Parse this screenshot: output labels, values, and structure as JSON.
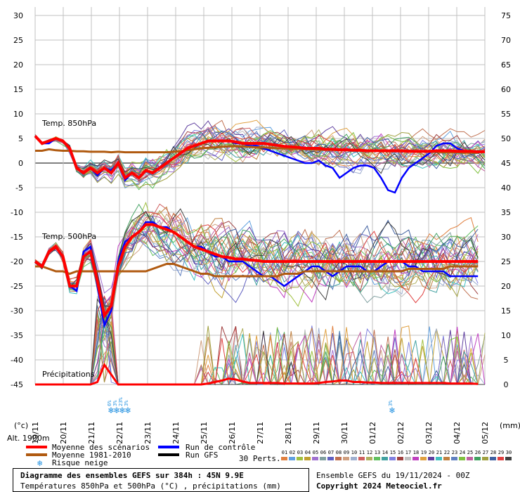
{
  "chart_data": {
    "type": "line",
    "left_axis": {
      "unit_label": "(°c)",
      "ticks": [
        30,
        25,
        20,
        15,
        10,
        5,
        0,
        -5,
        -10,
        -15,
        -20,
        -25,
        -30,
        -35,
        -40,
        -45
      ],
      "range": [
        -45,
        30
      ]
    },
    "right_axis": {
      "unit_label": "(mm)",
      "ticks": [
        75,
        70,
        65,
        60,
        55,
        50,
        45,
        40,
        35,
        30,
        25,
        20,
        15,
        10,
        5,
        0
      ],
      "range": [
        0,
        75
      ]
    },
    "x_labels": [
      "19/11",
      "20/11",
      "21/11",
      "22/11",
      "23/11",
      "24/11",
      "25/11",
      "26/11",
      "27/11",
      "28/11",
      "29/11",
      "30/11",
      "01/12",
      "02/12",
      "03/12",
      "04/12",
      "05/12"
    ],
    "altitude_label": "Alt. 1900m",
    "panels": [
      {
        "label": "Temp. 850hPa"
      },
      {
        "label": "Temp. 500hPa"
      },
      {
        "label": "Précipitations"
      }
    ],
    "series_850": {
      "mean": [
        5.5,
        4,
        4.5,
        5,
        4.5,
        3,
        -1,
        -2,
        -1,
        -2,
        -1,
        -2,
        0,
        -3,
        -2,
        -3,
        -1.5,
        -2,
        -1,
        0,
        1,
        2,
        3,
        3.5,
        4,
        4.5,
        4.5,
        4.5,
        4.5,
        4.3,
        4,
        4,
        4,
        4,
        3.8,
        3.6,
        3.4,
        3.3,
        3.2,
        3,
        3,
        3,
        2.8,
        2.8,
        2.7,
        2.7,
        2.6,
        2.6,
        2.5,
        2.5,
        2.5,
        2.5,
        2.5,
        2.5,
        2.4,
        2.4,
        2.4,
        2.4,
        2.5,
        2.5,
        2.5,
        2.4,
        2.4,
        2.4,
        2.3,
        2.3
      ],
      "climate": [
        2.5,
        2.5,
        2.8,
        2.6,
        2.5,
        2.5,
        2.4,
        2.4,
        2.3,
        2.3,
        2.3,
        2.2,
        2.3,
        2.2,
        2.2,
        2.2,
        2.2,
        2.2,
        2.2,
        2.2,
        2.3,
        2.4,
        2.6,
        2.8,
        3.0,
        3.1,
        3.2,
        3.3,
        3.4,
        3.4,
        3.4,
        3.3,
        3.2,
        3.2,
        3.1,
        3.0,
        3.0,
        2.9,
        2.9,
        2.8,
        2.8,
        2.7,
        2.7,
        2.7,
        2.6,
        2.6,
        2.6,
        2.5,
        2.5,
        2.5,
        2.4,
        2.4,
        2.4,
        2.4,
        2.3,
        2.3,
        2.3,
        2.3,
        2.3,
        2.2,
        2.2,
        2.2,
        2.1,
        2.1,
        2.1
      ],
      "control": [
        5.5,
        4,
        4,
        5,
        4.5,
        3,
        -1,
        -2,
        -1,
        -2.5,
        -1,
        -1.5,
        0,
        -3.5,
        -2,
        -3,
        -1.5,
        -2,
        -1,
        0,
        1,
        2,
        3,
        3.5,
        4,
        4.5,
        4.5,
        4.5,
        4.5,
        4,
        4,
        3.5,
        3.5,
        3,
        2.5,
        2,
        1.5,
        1,
        0.5,
        0,
        0,
        0.5,
        -0.5,
        -1,
        -3,
        -2,
        -1,
        -0.5,
        -0.5,
        -1,
        -3,
        -5.5,
        -6,
        -3,
        -1,
        0,
        1,
        2,
        3.5,
        4,
        4,
        3,
        2.5,
        2
      ]
    },
    "series_500": {
      "mean": [
        -20,
        -21,
        -18,
        -17,
        -19,
        -25,
        -25,
        -19,
        -18,
        -24,
        -31,
        -29,
        -21,
        -17,
        -15,
        -14,
        -12.5,
        -12.5,
        -13,
        -13.5,
        -14,
        -15,
        -16,
        -17,
        -17.5,
        -18,
        -18.5,
        -19,
        -19.2,
        -19.5,
        -19.5,
        -19.7,
        -19.8,
        -20,
        -20,
        -20,
        -20,
        -20,
        -20,
        -20,
        -20,
        -20,
        -20,
        -20,
        -20,
        -20,
        -20,
        -20,
        -20,
        -20,
        -20,
        -20,
        -20,
        -20,
        -20,
        -20,
        -20,
        -20,
        -20,
        -20,
        -20,
        -20,
        -20,
        -20,
        -20
      ],
      "climate": [
        -21,
        -21,
        -21.5,
        -22,
        -22,
        -22.5,
        -22,
        -22,
        -22,
        -22,
        -22,
        -22,
        -22,
        -22,
        -22,
        -22,
        -22,
        -21.5,
        -21,
        -20.5,
        -20.5,
        -21,
        -21.5,
        -22,
        -22.5,
        -22.5,
        -23,
        -23,
        -23,
        -23,
        -23,
        -23,
        -23,
        -23,
        -23,
        -23,
        -22.5,
        -22.5,
        -22.5,
        -22,
        -22,
        -22,
        -22,
        -22,
        -22,
        -22,
        -22,
        -22,
        -22,
        -22,
        -22,
        -22,
        -22,
        -22,
        -21.5,
        -21.5,
        -21.5,
        -21.5,
        -21.5,
        -21.5,
        -21,
        -21,
        -21,
        -21,
        -21
      ],
      "control": [
        -20,
        -21,
        -18,
        -17,
        -19,
        -25,
        -26,
        -18,
        -17,
        -25,
        -33,
        -30,
        -20,
        -16,
        -15,
        -14,
        -12,
        -12,
        -13,
        -13,
        -14,
        -15,
        -16,
        -17,
        -17,
        -18,
        -19,
        -19,
        -20,
        -20,
        -20,
        -21,
        -22,
        -23,
        -23,
        -24,
        -25,
        -24,
        -23,
        -22,
        -21,
        -21,
        -22,
        -23,
        -22,
        -21,
        -21,
        -21,
        -22,
        -22,
        -21,
        -20,
        -20,
        -20,
        -21,
        -21,
        -22,
        -22,
        -22,
        -22,
        -23,
        -23,
        -23,
        -23,
        -23
      ]
    },
    "series_precip": {
      "mean_mm": [
        0,
        0,
        0,
        0,
        0,
        0,
        0,
        0,
        0,
        0.5,
        4,
        2,
        0,
        0,
        0,
        0,
        0,
        0,
        0,
        0,
        0,
        0,
        0,
        0,
        0,
        0.2,
        0.5,
        0.8,
        1.2,
        1,
        0.6,
        0.3,
        0.3,
        0.3,
        0.3,
        0.3,
        0.2,
        0.2,
        0.2,
        0.2,
        0.2,
        0.3,
        0.5,
        0.6,
        0.8,
        0.8,
        0.5,
        0.5,
        0.4,
        0.4,
        0.3,
        0.3,
        0.3,
        0.3,
        0.3,
        0.3,
        0.3,
        0.3,
        0.3,
        0.3,
        0.2,
        0.2,
        0.2,
        0.2,
        0.1
      ],
      "gfs_mm": [
        0,
        0,
        0,
        0,
        0,
        0,
        0,
        0,
        0,
        0,
        0,
        0,
        0,
        0,
        0,
        0,
        0,
        0,
        0,
        0,
        0,
        0,
        0,
        0,
        0,
        0,
        0,
        0,
        0,
        0,
        0,
        0,
        0,
        0,
        0,
        0,
        0,
        0,
        0,
        0,
        0,
        0,
        0,
        0,
        0,
        0,
        0,
        0,
        0,
        0,
        0,
        0,
        0,
        0,
        0,
        0,
        0,
        0,
        0,
        0,
        0,
        0,
        0,
        0,
        0,
        0,
        0,
        0,
        0,
        0,
        0,
        0,
        0,
        0,
        0,
        0,
        0,
        0,
        0,
        0,
        0,
        0,
        0,
        0,
        0,
        0,
        0,
        0,
        0,
        0
      ]
    },
    "snow_risk": [
      {
        "day": "22/11",
        "labels": [
          "6%",
          "3%",
          "23%",
          "3%"
        ]
      },
      {
        "day": "02/12",
        "labels": [
          "3%"
        ]
      }
    ],
    "colors": {
      "mean": "#ff0000",
      "climate": "#b05a10",
      "control": "#0000ff",
      "gfs": "#000000",
      "grid": "#c0c0c0",
      "zero_line": "#808080",
      "snow": "#2090e0"
    }
  },
  "legend": {
    "items": [
      {
        "label": "Moyenne des scénarios",
        "color": "#ff0000"
      },
      {
        "label": "Moyenne 1981-2010",
        "color": "#b05a10"
      },
      {
        "label": "Risque neige",
        "icon": "snowflake-icon"
      },
      {
        "label": "Run de contrôle",
        "color": "#0000ff"
      },
      {
        "label": "Run GFS",
        "color": "#000000"
      }
    ],
    "perts_label": "30 Perts.",
    "perts": [
      "01",
      "02",
      "03",
      "04",
      "05",
      "06",
      "07",
      "08",
      "09",
      "10",
      "11",
      "12",
      "13",
      "14",
      "15",
      "16",
      "17",
      "18",
      "19",
      "20",
      "21",
      "22",
      "23",
      "24",
      "25",
      "26",
      "27",
      "28",
      "29",
      "30"
    ],
    "pert_colors": [
      "#e08040",
      "#60a0e0",
      "#a0c040",
      "#c0a030",
      "#a070d0",
      "#80a0a0",
      "#6060c0",
      "#c07050",
      "#d0a080",
      "#a0b0d0",
      "#d06060",
      "#b0b060",
      "#60c060",
      "#40a0a0",
      "#8080e0",
      "#a04040",
      "#c0c0c0",
      "#c040c0",
      "#e0a040",
      "#6040a0",
      "#40c0c0",
      "#c08040",
      "#6080c0",
      "#80c040",
      "#c060a0",
      "#40a060",
      "#a0a040",
      "#4060a0",
      "#e04040",
      "#404040"
    ]
  },
  "footer": {
    "title": "Diagramme des ensembles GEFS sur 384h : 45N 9.9E",
    "subtitle": "Températures 850hPa et 500hPa (°C) , précipitations (mm)",
    "run_info": "Ensemble GEFS du 19/11/2024 - 00Z",
    "copyright": "Copyright 2024 Meteociel.fr"
  }
}
